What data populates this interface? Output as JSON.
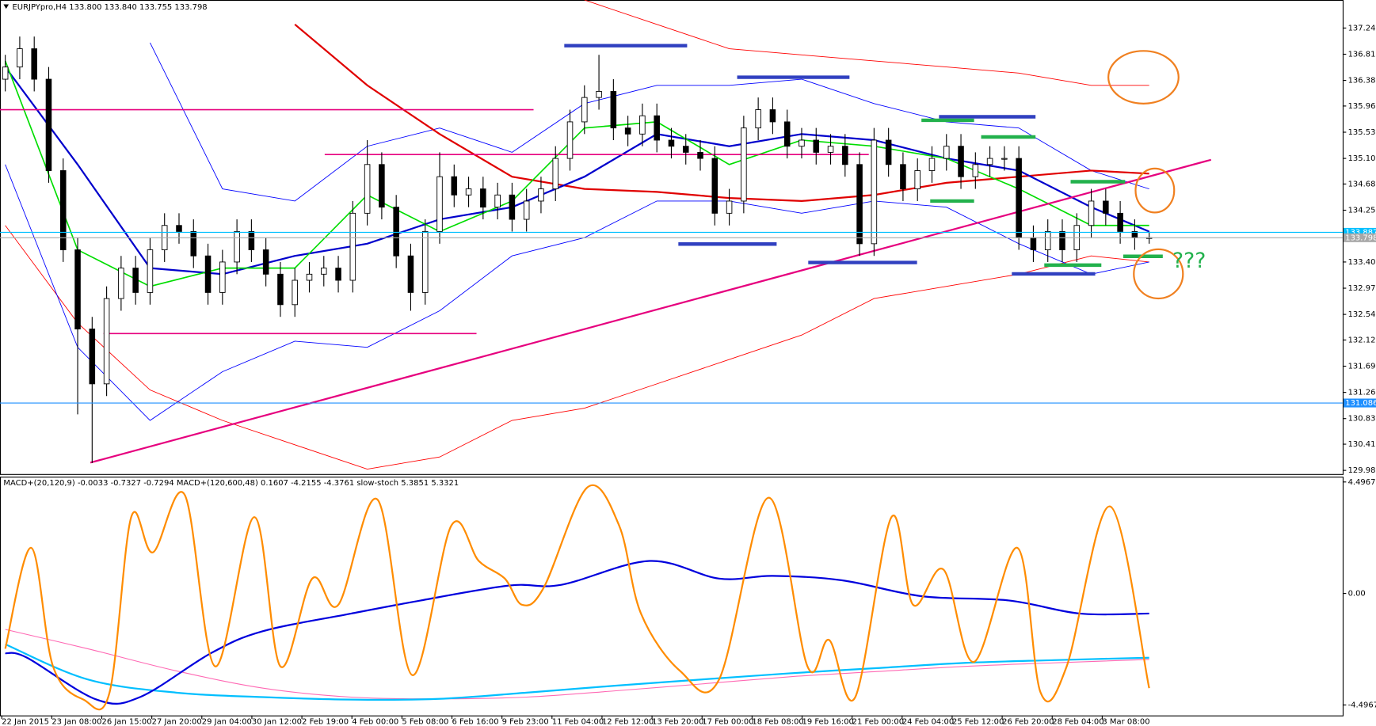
{
  "title": "EURJPYpro,H4 133.800 133.840 133.755 133.798",
  "chart_data": [
    {
      "type": "candlestick",
      "ylim": [
        137.7,
        129.92
      ],
      "yticks": [
        {
          "value": 137.24,
          "label": "137.240"
        },
        {
          "value": 136.81,
          "label": "136.810"
        },
        {
          "value": 136.38,
          "label": "136.380"
        },
        {
          "value": 135.96,
          "label": "135.960"
        },
        {
          "value": 135.53,
          "label": "135.530"
        },
        {
          "value": 135.1,
          "label": "135.100"
        },
        {
          "value": 134.68,
          "label": "134.680"
        },
        {
          "value": 134.25,
          "label": "134.250"
        },
        {
          "value": 133.4,
          "label": "133.400"
        },
        {
          "value": 132.97,
          "label": "132.970"
        },
        {
          "value": 132.54,
          "label": "132.540"
        },
        {
          "value": 132.12,
          "label": "132.120"
        },
        {
          "value": 131.69,
          "label": "131.690"
        },
        {
          "value": 131.26,
          "label": "131.260"
        },
        {
          "value": 130.83,
          "label": "130.830"
        },
        {
          "value": 130.41,
          "label": "130.410"
        },
        {
          "value": 129.98,
          "label": "129.980"
        }
      ],
      "open": [
        136.4,
        136.6,
        136.9,
        136.4,
        134.9,
        133.6,
        132.3,
        131.4,
        132.8,
        133.3,
        132.9,
        133.6,
        134.0,
        133.9,
        133.5,
        132.9,
        133.4,
        133.9,
        133.6,
        133.2,
        132.7,
        133.1,
        133.2,
        133.3,
        133.1,
        134.2,
        135.0,
        134.3,
        133.5,
        132.9,
        133.9,
        134.8,
        134.5,
        134.6,
        134.3,
        134.5,
        134.1,
        134.4,
        134.6,
        135.1,
        135.7,
        136.1,
        136.2,
        135.6,
        135.5,
        135.8,
        135.4,
        135.3,
        135.2,
        135.1,
        134.2,
        134.4,
        135.6,
        135.9,
        135.7,
        135.3,
        135.4,
        135.2,
        135.3,
        135.0,
        133.7,
        135.4,
        135.0,
        134.6,
        134.9,
        135.1,
        135.3,
        134.8,
        135.0,
        135.1,
        135.1,
        133.8,
        133.6,
        133.9,
        133.6,
        134.0,
        134.4,
        134.2,
        133.9,
        133.8
      ],
      "high": [
        136.8,
        137.1,
        137.1,
        136.6,
        135.1,
        133.8,
        132.5,
        133.0,
        133.5,
        133.5,
        133.8,
        134.2,
        134.2,
        134.1,
        133.7,
        133.6,
        134.1,
        134.1,
        133.8,
        133.4,
        133.3,
        133.4,
        133.5,
        133.5,
        134.4,
        135.4,
        135.2,
        134.5,
        133.7,
        134.1,
        135.2,
        135.0,
        134.8,
        134.8,
        134.7,
        134.7,
        134.6,
        134.8,
        135.3,
        135.9,
        136.3,
        136.8,
        136.4,
        135.8,
        136.0,
        136.0,
        135.6,
        135.5,
        135.4,
        135.3,
        134.6,
        135.8,
        136.1,
        136.1,
        135.9,
        135.6,
        135.6,
        135.5,
        135.5,
        135.2,
        135.6,
        135.6,
        135.2,
        135.1,
        135.3,
        135.5,
        135.5,
        135.2,
        135.3,
        135.3,
        135.3,
        134.0,
        134.1,
        134.1,
        134.2,
        134.6,
        134.6,
        134.4,
        134.1,
        133.9
      ],
      "low": [
        136.2,
        136.4,
        136.2,
        134.7,
        133.4,
        130.9,
        130.1,
        131.2,
        132.6,
        132.7,
        132.7,
        133.4,
        133.7,
        133.3,
        132.7,
        132.7,
        133.2,
        133.4,
        133.0,
        132.5,
        132.5,
        132.9,
        133.0,
        132.9,
        132.9,
        134.0,
        134.1,
        133.3,
        132.6,
        132.7,
        133.7,
        134.3,
        134.3,
        134.1,
        134.1,
        133.9,
        133.9,
        134.2,
        134.4,
        134.9,
        135.5,
        135.9,
        135.4,
        135.3,
        135.3,
        135.2,
        135.1,
        135.0,
        134.9,
        134.0,
        134.0,
        134.2,
        135.4,
        135.5,
        135.1,
        135.1,
        135.0,
        135.0,
        134.8,
        133.5,
        133.5,
        134.8,
        134.4,
        134.4,
        134.7,
        134.9,
        134.6,
        134.6,
        134.8,
        134.9,
        133.6,
        133.4,
        133.4,
        133.4,
        133.4,
        133.8,
        134.0,
        133.7,
        133.6,
        133.7
      ],
      "close": [
        136.6,
        136.9,
        136.4,
        134.9,
        133.6,
        132.3,
        131.4,
        132.8,
        133.3,
        132.9,
        133.6,
        134.0,
        133.9,
        133.5,
        132.9,
        133.4,
        133.9,
        133.6,
        133.2,
        132.7,
        133.1,
        133.2,
        133.3,
        133.1,
        134.2,
        135.0,
        134.3,
        133.5,
        132.9,
        133.9,
        134.8,
        134.5,
        134.6,
        134.3,
        134.5,
        134.1,
        134.4,
        134.6,
        135.1,
        135.7,
        136.1,
        136.2,
        135.6,
        135.5,
        135.8,
        135.4,
        135.3,
        135.2,
        135.1,
        134.2,
        134.4,
        135.6,
        135.9,
        135.7,
        135.3,
        135.4,
        135.2,
        135.3,
        135.0,
        133.7,
        135.4,
        135.0,
        134.6,
        134.9,
        135.1,
        135.3,
        134.8,
        135.0,
        135.1,
        135.1,
        133.8,
        133.6,
        133.9,
        133.6,
        134.0,
        134.4,
        134.2,
        133.9,
        133.8,
        133.8
      ],
      "overlay_x": [
        0,
        5,
        10,
        15,
        20,
        25,
        30,
        35,
        40,
        45,
        50,
        55,
        60,
        65,
        70,
        75,
        79
      ],
      "overlays": [
        {
          "color": "#ff0000",
          "width": 0.8,
          "values": [
            null,
            null,
            null,
            null,
            null,
            null,
            null,
            null,
            137.7,
            137.3,
            136.9,
            136.8,
            136.7,
            136.6,
            136.5,
            136.3,
            136.3
          ]
        },
        {
          "color": "#ff0000",
          "width": 0.8,
          "values": [
            134.0,
            132.4,
            131.3,
            130.8,
            130.4,
            130.0,
            130.2,
            130.8,
            131.0,
            131.4,
            131.8,
            132.2,
            132.8,
            133.0,
            133.2,
            133.5,
            133.4
          ]
        },
        {
          "color": "#0000ff",
          "width": 0.8,
          "values": [
            null,
            null,
            137.0,
            134.6,
            134.4,
            135.3,
            135.6,
            135.2,
            136.0,
            136.3,
            136.3,
            136.4,
            136.0,
            135.7,
            135.6,
            134.9,
            134.6
          ]
        },
        {
          "color": "#0000ff",
          "width": 0.8,
          "values": [
            135.0,
            132.0,
            130.8,
            131.6,
            132.1,
            132.0,
            132.6,
            133.5,
            133.8,
            134.4,
            134.4,
            134.2,
            134.4,
            134.3,
            133.7,
            133.2,
            133.4
          ]
        },
        {
          "color": "#e00000",
          "width": 2,
          "values": [
            null,
            null,
            null,
            null,
            137.3,
            136.3,
            135.5,
            134.8,
            134.6,
            134.55,
            134.45,
            134.4,
            134.5,
            134.7,
            134.8,
            134.9,
            134.85
          ]
        },
        {
          "color": "#0000cc",
          "width": 2,
          "values": [
            136.6,
            135.0,
            133.3,
            133.2,
            133.5,
            133.7,
            134.1,
            134.3,
            134.8,
            135.5,
            135.3,
            135.5,
            135.4,
            135.1,
            134.9,
            134.3,
            133.9
          ]
        },
        {
          "color": "#00dd00",
          "width": 1.5,
          "values": [
            136.7,
            133.6,
            133.0,
            133.3,
            133.3,
            134.5,
            133.9,
            134.4,
            135.6,
            135.7,
            135.0,
            135.4,
            135.3,
            135.1,
            134.6,
            134.0,
            134.0
          ]
        }
      ],
      "price_lines": [
        {
          "value": 133.887,
          "label": "133.887",
          "color": "#00bfff"
        },
        {
          "value": 133.798,
          "label": "133.798",
          "color": "#a8a8a8"
        },
        {
          "value": 131.086,
          "label": "131.086",
          "color": "#1e8fff"
        }
      ],
      "annotation": "???"
    },
    {
      "type": "oscillator",
      "legend": "MACD+(20,120,9) -0.0033 -0.7327 -0.7294 MACD+(120,600,48) 0.1607 -4.2155 -4.3761 slow-stoch 5.3851 5.3321",
      "ylim": [
        4.64,
        -4.92
      ],
      "yticks": [
        4.4967,
        {
          "value": 0,
          "label": "0.00"
        },
        -4.4967
      ],
      "series": [
        {
          "color": "#ff69b4",
          "width": 1,
          "x": [
            0,
            5.7,
            11.8,
            17.8,
            23.9,
            29.9,
            36,
            42.1,
            48.1,
            54.2,
            60.2,
            66.3,
            72.4,
            79
          ],
          "values": [
            -1.45,
            -2.23,
            -3.12,
            -3.82,
            -4.18,
            -4.25,
            -4.18,
            -3.93,
            -3.65,
            -3.36,
            -3.15,
            -2.94,
            -2.8,
            -2.66
          ]
        },
        {
          "color": "#00bfff",
          "width": 2,
          "x": [
            0,
            5.7,
            11.8,
            17.8,
            23.9,
            29.9,
            36,
            42.1,
            48.1,
            54.2,
            60.2,
            66.3,
            72.4,
            79
          ],
          "values": [
            -2.05,
            -3.47,
            -4.0,
            -4.18,
            -4.28,
            -4.25,
            -4.0,
            -3.72,
            -3.47,
            -3.22,
            -3.01,
            -2.8,
            -2.69,
            -2.59
          ]
        },
        {
          "color": "#0000dd",
          "width": 2,
          "x": [
            0,
            1.5,
            6.3,
            9.3,
            14.2,
            17.8,
            23.9,
            28.7,
            34.8,
            38.4,
            44.5,
            49.3,
            53,
            57.8,
            63.3,
            69.3,
            74.2,
            79
          ],
          "values": [
            -2.41,
            -2.59,
            -4.28,
            -4.18,
            -2.41,
            -1.52,
            -0.81,
            -0.28,
            0.32,
            0.35,
            1.31,
            0.6,
            0.71,
            0.53,
            -0.11,
            -0.28,
            -0.81,
            -0.81
          ]
        },
        {
          "color": "#ff8c00",
          "width": 2,
          "x": [
            0,
            1.8,
            3.3,
            5.4,
            7.2,
            8.7,
            10.2,
            12.4,
            14.5,
            17.2,
            19.0,
            21.2,
            23.0,
            25.7,
            28.1,
            30.8,
            32.7,
            34.5,
            35.7,
            37.2,
            40.2,
            42.4,
            43.9,
            46.6,
            49.3,
            52.7,
            55.4,
            56.9,
            58.7,
            61.2,
            62.7,
            64.8,
            66.9,
            69.9,
            71.5,
            73.3,
            76.3,
            79.0
          ],
          "values": [
            -2.23,
            1.84,
            -2.94,
            -4.28,
            -4.0,
            3.08,
            1.66,
            3.97,
            -2.94,
            3.08,
            -2.94,
            0.6,
            -0.46,
            3.79,
            -3.29,
            2.73,
            1.31,
            0.6,
            -0.46,
            0.25,
            4.28,
            2.73,
            -0.81,
            -3.12,
            -3.47,
            3.86,
            -2.94,
            -1.88,
            -4.18,
            3.08,
            -0.46,
            0.96,
            -2.76,
            1.84,
            -4.0,
            -2.94,
            3.51,
            -3.82
          ]
        }
      ]
    }
  ],
  "time_axis": {
    "categories": [
      "22 Jan 2015",
      "23 Jan 08:00",
      "26 Jan 15:00",
      "27 Jan 20:00",
      "29 Jan 04:00",
      "30 Jan 12:00",
      "2 Feb 19:00",
      "4 Feb 00:00",
      "5 Feb 08:00",
      "6 Feb 16:00",
      "9 Feb 23:00",
      "11 Feb 04:00",
      "12 Feb 12:00",
      "13 Feb 20:00",
      "17 Feb 00:00",
      "18 Feb 08:00",
      "19 Feb 16:00",
      "21 Feb 00:00",
      "24 Feb 04:00",
      "25 Feb 12:00",
      "26 Feb 20:00",
      "28 Feb 04:00",
      "3 Mar 08:00"
    ]
  }
}
